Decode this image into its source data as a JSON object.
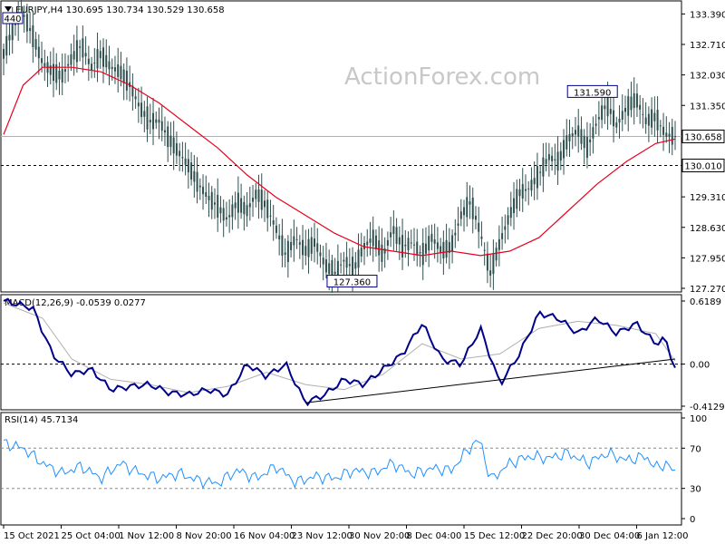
{
  "header": {
    "symbol_line": "EURJPY,H4  130.695 130.734 130.529 130.658",
    "watermark": "ActionForex.com"
  },
  "colors": {
    "candles": "#2f4f4f",
    "ma": "#e8001c",
    "macd": "#00008b",
    "signal": "#b0b0b0",
    "rsi": "#1e90ff",
    "trend": "#000000",
    "grid": "#000000"
  },
  "chart_data": [
    {
      "type": "candlestick",
      "name": "price",
      "title": "EURJPY,H4",
      "ohlc_current": {
        "open": 130.695,
        "high": 130.734,
        "low": 130.529,
        "close": 130.658
      },
      "yticks": [
        "133.390",
        "132.710",
        "132.030",
        "131.350",
        "130.658",
        "130.010",
        "129.310",
        "128.630",
        "127.950",
        "127.270"
      ],
      "ylim": [
        127.27,
        133.6
      ],
      "annotations": {
        "last": "130.658",
        "level": "130.010",
        "high_label": "131.590",
        "low_label": "127.360",
        "prev_label": "440"
      },
      "price_path": [
        [
          0,
          132.5
        ],
        [
          1,
          133.1
        ],
        [
          2,
          133.4
        ],
        [
          3,
          132.9
        ],
        [
          4,
          132.3
        ],
        [
          5,
          132.1
        ],
        [
          6,
          132.0
        ],
        [
          7,
          132.4
        ],
        [
          8,
          132.7
        ],
        [
          9,
          132.2
        ],
        [
          10,
          132.5
        ],
        [
          11,
          132.2
        ],
        [
          12,
          132.1
        ],
        [
          13,
          131.8
        ],
        [
          14,
          131.3
        ],
        [
          15,
          131.0
        ],
        [
          16,
          131.0
        ],
        [
          17,
          130.6
        ],
        [
          18,
          130.3
        ],
        [
          19,
          130.0
        ],
        [
          20,
          129.6
        ],
        [
          21,
          129.3
        ],
        [
          22,
          129.1
        ],
        [
          23,
          128.8
        ],
        [
          24,
          129.2
        ],
        [
          25,
          129.0
        ],
        [
          26,
          129.4
        ],
        [
          27,
          129.1
        ],
        [
          28,
          128.6
        ],
        [
          29,
          128.0
        ],
        [
          30,
          128.4
        ],
        [
          31,
          128.1
        ],
        [
          32,
          128.3
        ],
        [
          33,
          127.8
        ],
        [
          34,
          127.6
        ],
        [
          35,
          127.9
        ],
        [
          36,
          127.7
        ],
        [
          37,
          128.2
        ],
        [
          38,
          128.4
        ],
        [
          39,
          128.0
        ],
        [
          40,
          128.6
        ],
        [
          41,
          128.2
        ],
        [
          42,
          128.3
        ],
        [
          43,
          128.0
        ],
        [
          44,
          128.4
        ],
        [
          45,
          128.1
        ],
        [
          46,
          128.2
        ],
        [
          47,
          128.9
        ],
        [
          48,
          129.2
        ],
        [
          49,
          128.5
        ],
        [
          50,
          127.6
        ],
        [
          51,
          128.3
        ],
        [
          52,
          128.9
        ],
        [
          53,
          129.4
        ],
        [
          54,
          129.5
        ],
        [
          55,
          129.8
        ],
        [
          56,
          130.2
        ],
        [
          57,
          130.1
        ],
        [
          58,
          130.6
        ],
        [
          59,
          130.8
        ],
        [
          60,
          130.4
        ],
        [
          61,
          131.0
        ],
        [
          62,
          131.4
        ],
        [
          63,
          130.9
        ],
        [
          64,
          131.3
        ],
        [
          65,
          131.5
        ],
        [
          66,
          131.0
        ],
        [
          67,
          131.1
        ],
        [
          68,
          130.7
        ],
        [
          69,
          130.66
        ]
      ],
      "ma_path": [
        [
          0,
          130.7
        ],
        [
          2,
          131.8
        ],
        [
          4,
          132.2
        ],
        [
          7,
          132.2
        ],
        [
          10,
          132.1
        ],
        [
          13,
          131.8
        ],
        [
          16,
          131.4
        ],
        [
          19,
          130.9
        ],
        [
          22,
          130.4
        ],
        [
          25,
          129.8
        ],
        [
          28,
          129.3
        ],
        [
          31,
          128.9
        ],
        [
          34,
          128.5
        ],
        [
          37,
          128.2
        ],
        [
          40,
          128.1
        ],
        [
          43,
          128.0
        ],
        [
          46,
          128.1
        ],
        [
          49,
          128.0
        ],
        [
          52,
          128.1
        ],
        [
          55,
          128.4
        ],
        [
          58,
          129.0
        ],
        [
          61,
          129.6
        ],
        [
          64,
          130.1
        ],
        [
          67,
          130.5
        ],
        [
          69,
          130.6
        ]
      ]
    },
    {
      "type": "line",
      "name": "macd",
      "title": "MACD(12,26,9) -0.0539 0.0277",
      "yticks": [
        "0.6189",
        "0.00",
        "-0.4129"
      ],
      "ylim": [
        -0.4129,
        0.6189
      ],
      "macd_path": [
        [
          0,
          0.62
        ],
        [
          3,
          0.55
        ],
        [
          5,
          0.1
        ],
        [
          7,
          -0.1
        ],
        [
          9,
          -0.05
        ],
        [
          11,
          -0.25
        ],
        [
          13,
          -0.22
        ],
        [
          15,
          -0.2
        ],
        [
          17,
          -0.28
        ],
        [
          19,
          -0.3
        ],
        [
          21,
          -0.25
        ],
        [
          23,
          -0.3
        ],
        [
          25,
          0.0
        ],
        [
          27,
          -0.12
        ],
        [
          29,
          0.0
        ],
        [
          31,
          -0.38
        ],
        [
          33,
          -0.3
        ],
        [
          35,
          -0.15
        ],
        [
          37,
          -0.2
        ],
        [
          39,
          -0.05
        ],
        [
          41,
          0.1
        ],
        [
          43,
          0.4
        ],
        [
          45,
          0.05
        ],
        [
          47,
          0.0
        ],
        [
          49,
          0.35
        ],
        [
          51,
          -0.2
        ],
        [
          53,
          0.1
        ],
        [
          55,
          0.5
        ],
        [
          57,
          0.45
        ],
        [
          59,
          0.3
        ],
        [
          61,
          0.45
        ],
        [
          63,
          0.3
        ],
        [
          65,
          0.4
        ],
        [
          67,
          0.2
        ],
        [
          68,
          0.25
        ],
        [
          69,
          -0.05
        ]
      ],
      "signal_path": [
        [
          0,
          0.6
        ],
        [
          4,
          0.45
        ],
        [
          7,
          0.05
        ],
        [
          11,
          -0.15
        ],
        [
          15,
          -0.2
        ],
        [
          19,
          -0.28
        ],
        [
          23,
          -0.22
        ],
        [
          27,
          -0.08
        ],
        [
          31,
          -0.2
        ],
        [
          35,
          -0.25
        ],
        [
          39,
          -0.1
        ],
        [
          43,
          0.2
        ],
        [
          47,
          0.05
        ],
        [
          51,
          0.1
        ],
        [
          55,
          0.35
        ],
        [
          59,
          0.42
        ],
        [
          63,
          0.38
        ],
        [
          67,
          0.3
        ],
        [
          69,
          0.03
        ]
      ],
      "trendline": [
        [
          31,
          -0.38
        ],
        [
          69,
          0.05
        ]
      ]
    },
    {
      "type": "line",
      "name": "rsi",
      "title": "RSI(14) 45.7134",
      "yticks": [
        "100",
        "70",
        "30",
        "0"
      ],
      "ylim": [
        0,
        100
      ],
      "levels": [
        70,
        30
      ],
      "rsi_path": [
        [
          0,
          75
        ],
        [
          2,
          70
        ],
        [
          4,
          55
        ],
        [
          6,
          45
        ],
        [
          8,
          52
        ],
        [
          10,
          40
        ],
        [
          12,
          55
        ],
        [
          14,
          45
        ],
        [
          16,
          40
        ],
        [
          18,
          45
        ],
        [
          20,
          38
        ],
        [
          22,
          35
        ],
        [
          24,
          48
        ],
        [
          26,
          40
        ],
        [
          28,
          52
        ],
        [
          30,
          36
        ],
        [
          32,
          42
        ],
        [
          34,
          40
        ],
        [
          36,
          48
        ],
        [
          38,
          45
        ],
        [
          40,
          55
        ],
        [
          42,
          44
        ],
        [
          44,
          50
        ],
        [
          46,
          48
        ],
        [
          48,
          72
        ],
        [
          49,
          78
        ],
        [
          50,
          38
        ],
        [
          52,
          55
        ],
        [
          54,
          62
        ],
        [
          56,
          60
        ],
        [
          58,
          65
        ],
        [
          60,
          55
        ],
        [
          62,
          65
        ],
        [
          64,
          58
        ],
        [
          66,
          62
        ],
        [
          67,
          50
        ],
        [
          68,
          55
        ],
        [
          69,
          45.7
        ]
      ]
    }
  ],
  "x_axis": {
    "labels": [
      "15 Oct 2021",
      "25 Oct 04:00",
      "1 Nov 12:00",
      "8 Nov 20:00",
      "16 Nov 04:00",
      "23 Nov 12:00",
      "30 Nov 20:00",
      "8 Dec 04:00",
      "15 Dec 12:00",
      "22 Dec 20:00",
      "30 Dec 04:00",
      "6 Jan 12:00"
    ],
    "range": [
      0,
      69
    ]
  }
}
